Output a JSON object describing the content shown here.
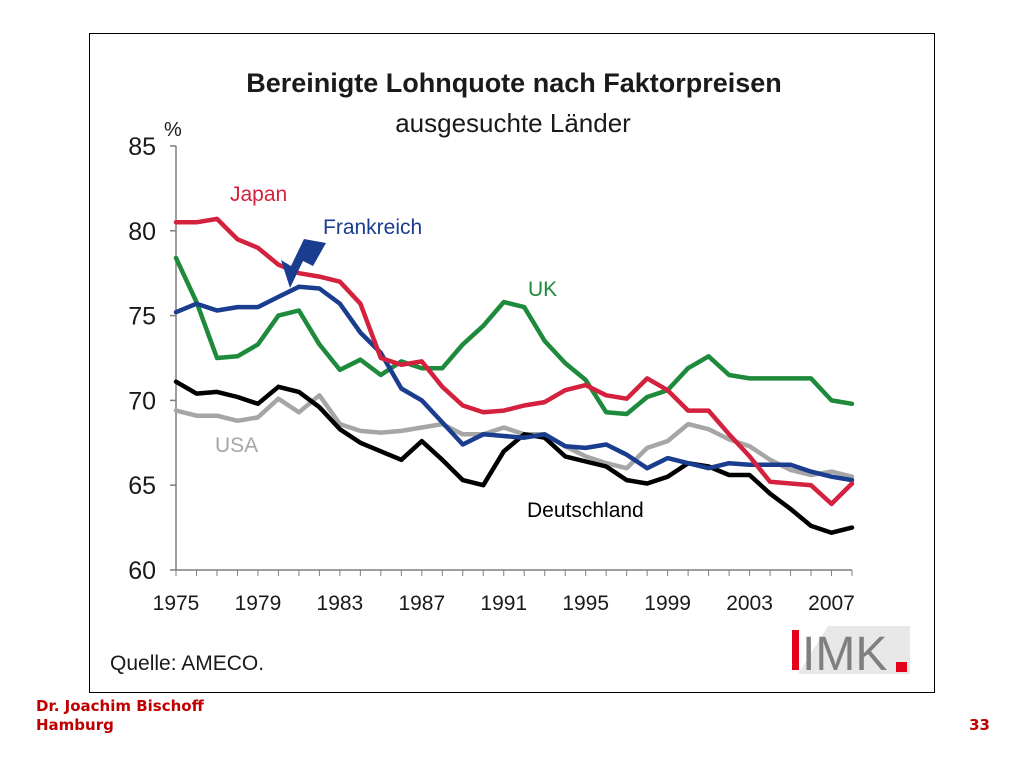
{
  "chart_data": {
    "type": "line",
    "title": "Bereinigte Lohnquote nach Faktorpreisen",
    "subtitle": "ausgesuchte Länder",
    "ylabel": "%",
    "ylim": [
      60,
      85
    ],
    "yticks": [
      60,
      65,
      70,
      75,
      80,
      85
    ],
    "xlim": [
      1975,
      2008
    ],
    "xticks": [
      1975,
      1979,
      1983,
      1987,
      1991,
      1995,
      1999,
      2003,
      2007
    ],
    "grid": false,
    "x": [
      1975,
      1976,
      1977,
      1978,
      1979,
      1980,
      1981,
      1982,
      1983,
      1984,
      1985,
      1986,
      1987,
      1988,
      1989,
      1990,
      1991,
      1992,
      1993,
      1994,
      1995,
      1996,
      1997,
      1998,
      1999,
      2000,
      2001,
      2002,
      2003,
      2004,
      2005,
      2006,
      2007,
      2008
    ],
    "series": [
      {
        "name": "Japan",
        "color": "#d4213d",
        "values": [
          80.5,
          80.5,
          80.7,
          79.5,
          79.0,
          78.0,
          77.5,
          77.3,
          77.0,
          75.7,
          72.5,
          72.1,
          72.3,
          70.8,
          69.7,
          69.3,
          69.4,
          69.7,
          69.9,
          70.6,
          70.9,
          70.3,
          70.1,
          71.3,
          70.6,
          69.4,
          69.4,
          68.0,
          66.7,
          65.2,
          65.1,
          65.0,
          63.9,
          65.1
        ]
      },
      {
        "name": "Frankreich",
        "color": "#1a3d8f",
        "values": [
          75.2,
          75.7,
          75.3,
          75.5,
          75.5,
          76.1,
          76.7,
          76.6,
          75.7,
          74.0,
          72.8,
          70.7,
          70.0,
          68.7,
          67.4,
          68.0,
          67.9,
          67.8,
          68.0,
          67.3,
          67.2,
          67.4,
          66.8,
          66.0,
          66.6,
          66.3,
          66.0,
          66.3,
          66.2,
          66.2,
          66.2,
          65.8,
          65.5,
          65.3
        ]
      },
      {
        "name": "UK",
        "color": "#1e8a3c",
        "values": [
          78.4,
          75.8,
          72.5,
          72.6,
          73.3,
          75.0,
          75.3,
          73.3,
          71.8,
          72.4,
          71.5,
          72.3,
          71.9,
          71.9,
          73.3,
          74.4,
          75.8,
          75.5,
          73.5,
          72.2,
          71.2,
          69.3,
          69.2,
          70.2,
          70.6,
          71.9,
          72.6,
          71.5,
          71.3,
          71.3,
          71.3,
          71.3,
          70.0,
          69.8
        ]
      },
      {
        "name": "USA",
        "color": "#a6a6a6",
        "values": [
          69.4,
          69.1,
          69.1,
          68.8,
          69.0,
          70.1,
          69.3,
          70.3,
          68.6,
          68.2,
          68.1,
          68.2,
          68.4,
          68.6,
          68.0,
          68.0,
          68.4,
          68.0,
          68.0,
          67.3,
          66.7,
          66.3,
          66.0,
          67.2,
          67.6,
          68.6,
          68.3,
          67.7,
          67.3,
          66.5,
          65.9,
          65.6,
          65.8,
          65.5
        ]
      },
      {
        "name": "Deutschland",
        "color": "#000000",
        "values": [
          71.1,
          70.4,
          70.5,
          70.2,
          69.8,
          70.8,
          70.5,
          69.6,
          68.3,
          67.5,
          67.0,
          66.5,
          67.6,
          66.5,
          65.3,
          65.0,
          67.0,
          68.0,
          67.8,
          66.7,
          66.4,
          66.1,
          65.3,
          65.1,
          65.5,
          66.3,
          66.1,
          65.6,
          65.6,
          64.5,
          63.6,
          62.6,
          62.2,
          62.5
        ]
      }
    ],
    "annotations": [
      {
        "text": "Japan",
        "color": "#d4213d"
      },
      {
        "text": "Frankreich",
        "color": "#1a3d8f"
      },
      {
        "text": "UK",
        "color": "#1e8a3c"
      },
      {
        "text": "USA",
        "color": "#a6a6a6"
      },
      {
        "text": "Deutschland",
        "color": "#000000"
      }
    ],
    "source": "Quelle: AMECO."
  },
  "logo": {
    "text": "IMK",
    "accent_color": "#e3001b",
    "text_color": "#7f7f7f"
  },
  "footer": {
    "author_line1": "Dr. Joachim Bischoff",
    "author_line2": "Hamburg",
    "page_number": "33",
    "color": "#c00000"
  }
}
